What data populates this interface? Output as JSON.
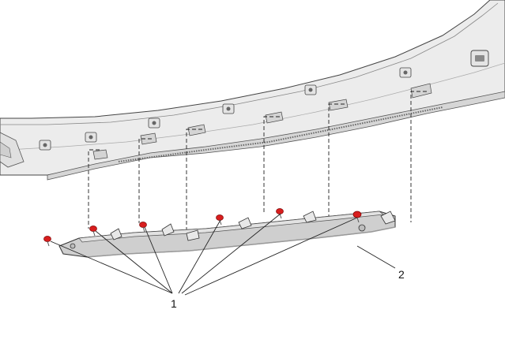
{
  "diagram": {
    "callouts": [
      {
        "id": "1",
        "label": "1"
      },
      {
        "id": "2",
        "label": "2"
      }
    ],
    "colors": {
      "background": "#ffffff",
      "panel_fill": "#ececec",
      "panel_shade": "#d6d6d6",
      "line": "#333333",
      "clip_red": "#d81e1e",
      "bracket_fill": "#cfcfcf",
      "bracket_dark": "#9a9a9a"
    }
  }
}
